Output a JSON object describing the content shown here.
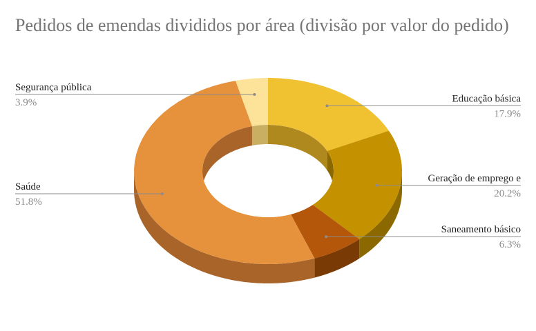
{
  "chart_data": {
    "type": "pie",
    "variant": "3d-donut",
    "title": "Pedidos de emendas divididos por área (divisão por valor do pedido)",
    "slices": [
      {
        "label": "Educação básica",
        "value": 17.9,
        "value_label": "17.9%",
        "color": "#F0C231",
        "side_color": "#B0891E"
      },
      {
        "label": "Geração de emprego e",
        "value": 20.2,
        "value_label": "20.2%",
        "color": "#C49200",
        "side_color": "#8C6900"
      },
      {
        "label": "Saneamento básico",
        "value": 6.3,
        "value_label": "6.3%",
        "color": "#B5570B",
        "side_color": "#7A3A06"
      },
      {
        "label": "Saúde",
        "value": 51.8,
        "value_label": "51.8%",
        "color": "#E6913B",
        "side_color": "#A9642A"
      },
      {
        "label": "Segurança pública",
        "value": 3.9,
        "value_label": "3.9%",
        "color": "#FDE29A",
        "side_color": "#C8AF62"
      }
    ],
    "legend": "none"
  }
}
